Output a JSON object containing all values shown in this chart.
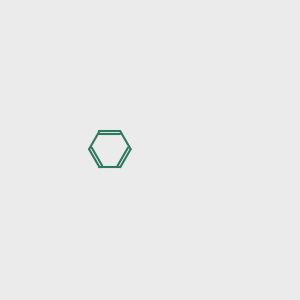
{
  "bg_color": "#ebebeb",
  "bond_color": "#2d7a5f",
  "N_color": "#0000cc",
  "O_color": "#cc0000",
  "Cl_color": "#008800",
  "lw": 1.5,
  "font_size": 8.5
}
